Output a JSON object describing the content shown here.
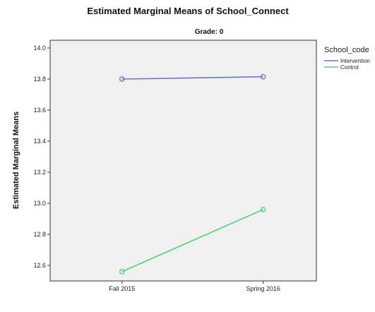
{
  "chart_data": {
    "type": "line",
    "title": "Estimated Marginal Means of School_Connect",
    "subtitle": "Grade: 0",
    "xlabel": "",
    "ylabel": "Estimated Marginal Means",
    "categories": [
      "Fall 2015",
      "Spring 2016"
    ],
    "ylim": [
      12.5,
      14.05
    ],
    "yticks": [
      "12.6",
      "12.8",
      "13.0",
      "13.2",
      "13.4",
      "13.6",
      "13.8",
      "14.0"
    ],
    "grid": false,
    "legend": {
      "title": "School_code",
      "placement": "right"
    },
    "series": [
      {
        "name": "Intervention",
        "values": [
          13.8,
          13.815
        ],
        "color": "#6f74c8"
      },
      {
        "name": "Control",
        "values": [
          12.56,
          12.96
        ],
        "color": "#4ed17b"
      }
    ],
    "plot_background": "#f0f0f0"
  }
}
